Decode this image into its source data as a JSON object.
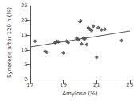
{
  "chart_data": {
    "type": "scatter",
    "xlabel": "Amylose (%)",
    "ylabel": "Syneresis after 120 h (%)",
    "xlim": [
      17,
      23
    ],
    "ylim": [
      0,
      25
    ],
    "xticks": [
      17,
      19,
      21,
      23
    ],
    "yticks": [
      0,
      5,
      10,
      15,
      20,
      25
    ],
    "grid": false,
    "series": [
      {
        "type": "scatter",
        "marker": "diamond",
        "color": "#444444",
        "x": [
          17.3,
          17.9,
          18.0,
          18.5,
          18.6,
          18.7,
          19.0,
          19.2,
          19.3,
          19.8,
          19.9,
          20.0,
          20.05,
          20.1,
          20.2,
          20.3,
          20.4,
          20.5,
          20.6,
          20.7,
          20.8,
          21.0,
          21.1,
          21.3,
          21.5,
          22.5
        ],
        "values": [
          13.0,
          9.5,
          9.2,
          12.5,
          13.0,
          12.8,
          9.0,
          13.0,
          12.5,
          14.0,
          13.5,
          19.5,
          19.8,
          12.0,
          14.0,
          13.8,
          11.8,
          17.5,
          17.0,
          16.5,
          18.0,
          7.5,
          17.5,
          16.8,
          17.0,
          13.2
        ]
      },
      {
        "type": "line",
        "color": "#555555",
        "x": [
          17,
          23
        ],
        "values": [
          11.0,
          16.4
        ]
      }
    ]
  }
}
